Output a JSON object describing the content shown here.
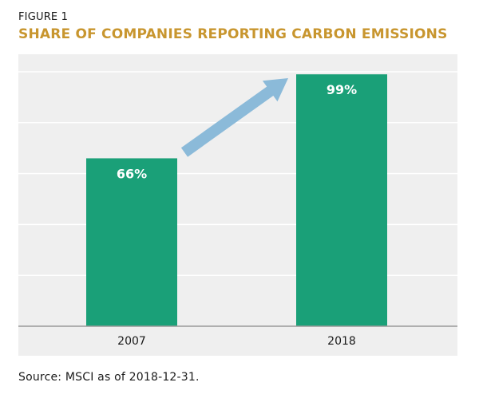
{
  "figure_label": "FIGURE 1",
  "title": "SHARE OF COMPANIES REPORTING CARBON EMISSIONS",
  "source": "Source: MSCI as of 2018-12-31.",
  "colors": {
    "bar": "#1aa078",
    "arrow": "#8bbad9",
    "plot_background": "#efefef",
    "title": "#c8962f"
  },
  "chart_data": {
    "type": "bar",
    "title": "SHARE OF COMPANIES REPORTING CARBON EMISSIONS",
    "xlabel": "",
    "ylabel": "",
    "categories": [
      "2007",
      "2018"
    ],
    "values": [
      66,
      99
    ],
    "labels": [
      "66%",
      "99%"
    ],
    "unit": "%",
    "ylim": [
      0,
      100
    ],
    "gridlines": [
      0,
      20,
      40,
      60,
      80,
      100
    ],
    "annotations": [
      "upward arrow from 2007 bar to 2018 bar"
    ]
  }
}
